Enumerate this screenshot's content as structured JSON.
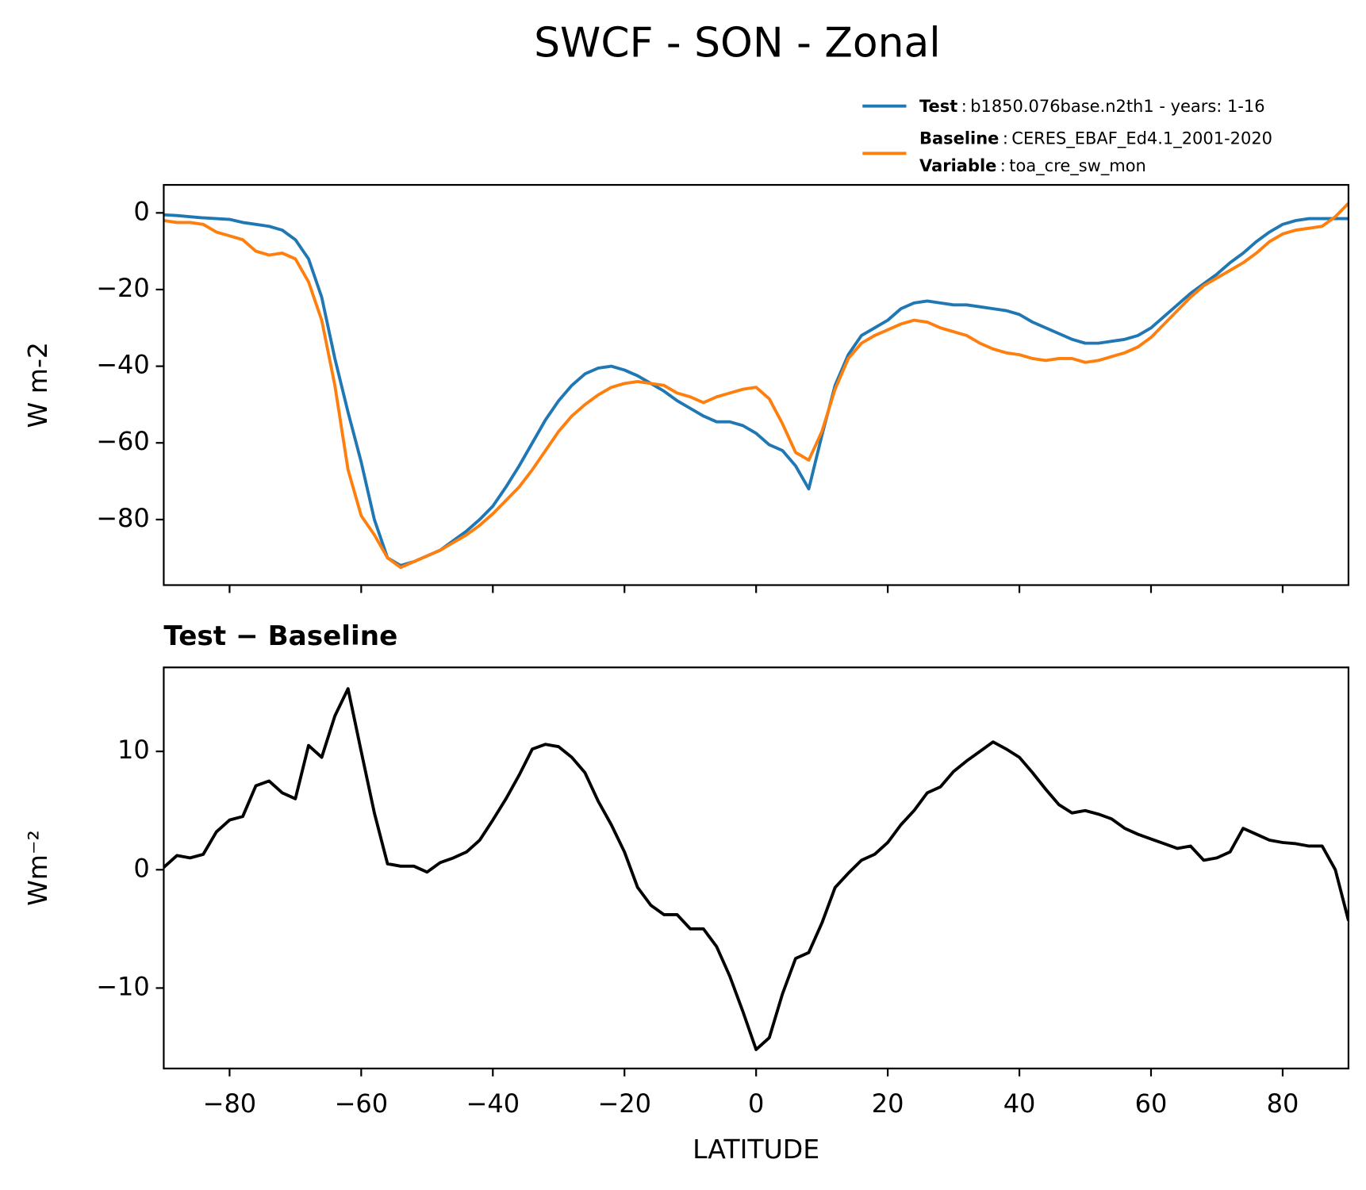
{
  "title": "SWCF - SON - Zonal",
  "legend": {
    "separator": ":",
    "note_name": "Variable",
    "note_description": "toa_cre_sw_mon"
  },
  "chart_data": [
    {
      "type": "line",
      "ylabel": "W m-2",
      "xtick_labels": false,
      "x": [
        -90,
        -88,
        -86,
        -84,
        -82,
        -80,
        -78,
        -76,
        -74,
        -72,
        -70,
        -68,
        -66,
        -64,
        -62,
        -60,
        -58,
        -56,
        -54,
        -52,
        -50,
        -48,
        -46,
        -44,
        -42,
        -40,
        -38,
        -36,
        -34,
        -32,
        -30,
        -28,
        -26,
        -24,
        -22,
        -20,
        -18,
        -16,
        -14,
        -12,
        -10,
        -8,
        -6,
        -4,
        -2,
        0,
        2,
        4,
        6,
        8,
        10,
        12,
        14,
        16,
        18,
        20,
        22,
        24,
        26,
        28,
        30,
        32,
        34,
        36,
        38,
        40,
        42,
        44,
        46,
        48,
        50,
        52,
        54,
        56,
        58,
        60,
        62,
        64,
        66,
        68,
        70,
        72,
        74,
        76,
        78,
        80,
        82,
        84,
        86,
        88,
        90
      ],
      "series": [
        {
          "name": "Test",
          "description": "b1850.076base.n2th1 - years: 1-16",
          "color": "#1f77b4",
          "values": [
            -0.5,
            -0.7,
            -1,
            -1.3,
            -1.5,
            -1.7,
            -2.5,
            -3,
            -3.5,
            -4.5,
            -7,
            -12,
            -22,
            -38,
            -52,
            -65,
            -80,
            -90,
            -92,
            -91,
            -89.5,
            -88,
            -85.5,
            -83,
            -80,
            -76.5,
            -71.5,
            -66,
            -60,
            -54,
            -49,
            -45,
            -42,
            -40.5,
            -40,
            -41,
            -42.5,
            -44.5,
            -46.5,
            -49,
            -51,
            -53,
            -54.5,
            -54.5,
            -55.5,
            -57.5,
            -60.5,
            -62,
            -66,
            -72,
            -58,
            -45,
            -37,
            -32,
            -30,
            -28,
            -25,
            -23.5,
            -23,
            -23.5,
            -24,
            -24,
            -24.5,
            -25,
            -25.5,
            -26.5,
            -28.5,
            -30,
            -31.5,
            -33,
            -34,
            -34,
            -33.5,
            -33,
            -32,
            -30,
            -27,
            -24,
            -21,
            -18.5,
            -16,
            -13,
            -10.5,
            -7.5,
            -5,
            -3,
            -2,
            -1.5,
            -1.5,
            -1.5,
            -1.5
          ]
        },
        {
          "name": "Baseline",
          "description": "CERES_EBAF_Ed4.1_2001-2020",
          "color": "#ff7f0e",
          "values": [
            -2,
            -2.5,
            -2.5,
            -3,
            -5,
            -6,
            -7,
            -10,
            -11,
            -10.5,
            -12,
            -18,
            -28,
            -45,
            -67,
            -79,
            -84,
            -90,
            -92.5,
            -91,
            -89.5,
            -88,
            -86,
            -84,
            -81.5,
            -78.5,
            -75,
            -71.5,
            -67,
            -62,
            -57,
            -53,
            -50,
            -47.5,
            -45.5,
            -44.5,
            -44,
            -44.5,
            -45,
            -47,
            -48,
            -49.5,
            -48,
            -47,
            -46,
            -45.5,
            -48.5,
            -55,
            -62.5,
            -64.5,
            -57,
            -46,
            -38,
            -34,
            -32,
            -30.5,
            -29,
            -28,
            -28.5,
            -30,
            -31,
            -32,
            -34,
            -35.5,
            -36.5,
            -37,
            -38,
            -38.5,
            -38,
            -38,
            -39,
            -38.5,
            -37.5,
            -36.5,
            -35,
            -32.5,
            -29,
            -25.5,
            -22,
            -19,
            -17,
            -15,
            -13,
            -10.5,
            -7.5,
            -5.5,
            -4.5,
            -4,
            -3.5,
            -1,
            2.5
          ]
        }
      ],
      "xlim": [
        -90,
        90
      ],
      "xticks": [
        -80,
        -60,
        -40,
        -20,
        0,
        20,
        40,
        60,
        80
      ],
      "ylim": [
        -97.1,
        7.3
      ],
      "yticks": [
        {
          "value": 0,
          "label": "0"
        },
        {
          "value": -20,
          "label": "−20"
        },
        {
          "value": -40,
          "label": "−40"
        },
        {
          "value": -60,
          "label": "−60"
        },
        {
          "value": -80,
          "label": "−80"
        }
      ]
    },
    {
      "type": "line",
      "title": "Test − Baseline",
      "ylabel": "Wm⁻²",
      "xlabel": "LATITUDE",
      "xtick_labels": true,
      "x": [
        -90,
        -88,
        -86,
        -84,
        -82,
        -80,
        -78,
        -76,
        -74,
        -72,
        -70,
        -68,
        -66,
        -64,
        -62,
        -60,
        -58,
        -56,
        -54,
        -52,
        -50,
        -48,
        -46,
        -44,
        -42,
        -40,
        -38,
        -36,
        -34,
        -32,
        -30,
        -28,
        -26,
        -24,
        -22,
        -20,
        -18,
        -16,
        -14,
        -12,
        -10,
        -8,
        -6,
        -4,
        -2,
        0,
        2,
        4,
        6,
        8,
        10,
        12,
        14,
        16,
        18,
        20,
        22,
        24,
        26,
        28,
        30,
        32,
        34,
        36,
        38,
        40,
        42,
        44,
        46,
        48,
        50,
        52,
        54,
        56,
        58,
        60,
        62,
        64,
        66,
        68,
        70,
        72,
        74,
        76,
        78,
        80,
        82,
        84,
        86,
        88,
        90
      ],
      "series": [
        {
          "color": "#000000",
          "values": [
            0.2,
            1.2,
            1.0,
            1.3,
            3.2,
            4.2,
            4.5,
            7.1,
            7.5,
            6.5,
            6.0,
            10.5,
            9.5,
            13,
            15.3,
            10,
            4.8,
            0.5,
            0.3,
            0.3,
            -0.2,
            0.6,
            1.0,
            1.5,
            2.5,
            4.2,
            6,
            8,
            10.2,
            10.6,
            10.4,
            9.5,
            8.2,
            5.8,
            3.8,
            1.5,
            -1.5,
            -3,
            -3.8,
            -3.8,
            -5,
            -5,
            -6.5,
            -9,
            -12,
            -15.2,
            -14.2,
            -10.5,
            -7.5,
            -7,
            -4.5,
            -1.5,
            -0.3,
            0.8,
            1.3,
            2.3,
            3.8,
            5,
            6.5,
            7,
            8.3,
            9.2,
            10,
            10.8,
            10.2,
            9.5,
            8.2,
            6.8,
            5.5,
            4.8,
            5,
            4.7,
            4.3,
            3.5,
            3,
            2.6,
            2.2,
            1.8,
            2.0,
            0.8,
            1.0,
            1.5,
            3.5,
            3,
            2.5,
            2.3,
            2.2,
            2,
            2,
            0,
            -4.3
          ]
        }
      ],
      "xlim": [
        -90,
        90
      ],
      "xticks": [
        {
          "value": -80,
          "label": "−80"
        },
        {
          "value": -60,
          "label": "−60"
        },
        {
          "value": -40,
          "label": "−40"
        },
        {
          "value": -20,
          "label": "−20"
        },
        {
          "value": 0,
          "label": "0"
        },
        {
          "value": 20,
          "label": "20"
        },
        {
          "value": 40,
          "label": "40"
        },
        {
          "value": 60,
          "label": "60"
        },
        {
          "value": 80,
          "label": "80"
        }
      ],
      "ylim": [
        -16.8,
        17.1
      ],
      "yticks": [
        {
          "value": 10,
          "label": "10"
        },
        {
          "value": 0,
          "label": "0"
        },
        {
          "value": -10,
          "label": "−10"
        }
      ]
    }
  ]
}
